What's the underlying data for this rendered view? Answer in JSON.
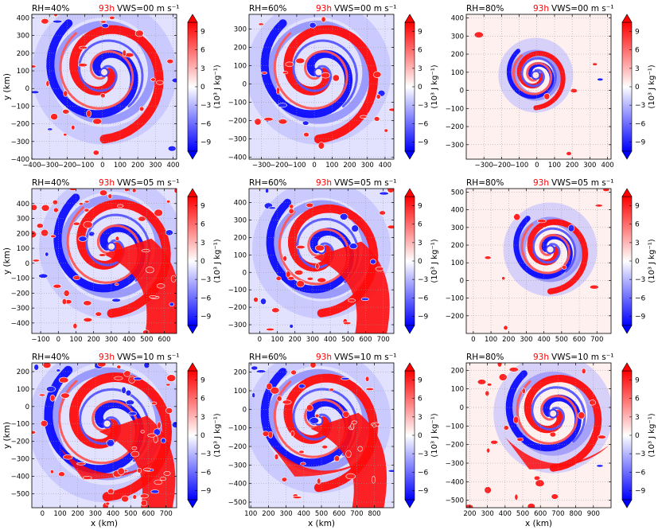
{
  "colorbar": {
    "label": "(10³ J kg⁻¹)",
    "ticks": [
      9,
      6,
      3,
      0,
      -3,
      -6,
      -9
    ],
    "vmin": -10.5,
    "vmax": 10.5,
    "colormap": "bwr",
    "colors": {
      "negative": "#0000ff",
      "neutral": "#ffffff",
      "positive": "#ff0000"
    }
  },
  "chart_data": [
    {
      "type": "heatmap",
      "rh": "RH=40%",
      "time": "93h",
      "vws": "VWS=00 m s⁻¹",
      "xlim": [
        -400,
        420
      ],
      "ylim": [
        -400,
        420
      ],
      "xticks": [
        "−400",
        "−300",
        "−200",
        "−100",
        "0",
        "100",
        "200",
        "300",
        "400"
      ],
      "yticks": [
        "−400",
        "−300",
        "−200",
        "−100",
        "0",
        "100",
        "200",
        "300",
        "400"
      ],
      "ylabel": "y (km)",
      "xlabel": "",
      "grid": true
    },
    {
      "type": "heatmap",
      "rh": "RH=60%",
      "time": "93h",
      "vws": "VWS=00 m s⁻¹",
      "xlim": [
        -370,
        450
      ],
      "ylim": [
        -410,
        380
      ],
      "xticks": [
        "−300",
        "−200",
        "−100",
        "0",
        "100",
        "200",
        "300",
        "400"
      ],
      "yticks": [
        "−400",
        "−300",
        "−200",
        "−100",
        "0",
        "100",
        "200",
        "300"
      ],
      "ylabel": "",
      "xlabel": "",
      "grid": true
    },
    {
      "type": "heatmap",
      "rh": "RH=80%",
      "time": "93h",
      "vws": "VWS=00 m s⁻¹",
      "xlim": [
        -400,
        420
      ],
      "ylim": [
        -380,
        420
      ],
      "xticks": [
        "−300",
        "−200",
        "−100",
        "0",
        "100",
        "200",
        "300",
        "400"
      ],
      "yticks": [
        "−300",
        "−200",
        "−100",
        "0",
        "100",
        "200",
        "300",
        "400"
      ],
      "ylabel": "",
      "xlabel": "",
      "grid": true
    },
    {
      "type": "heatmap",
      "rh": "RH=40%",
      "time": "93h",
      "vws": "VWS=05 m s⁻¹",
      "xlim": [
        -150,
        670
      ],
      "ylim": [
        -470,
        500
      ],
      "xticks": [
        "−100",
        "0",
        "100",
        "200",
        "300",
        "400",
        "500",
        "600"
      ],
      "yticks": [
        "−400",
        "−300",
        "−200",
        "−100",
        "0",
        "100",
        "200",
        "300",
        "400"
      ],
      "ylabel": "y (km)",
      "xlabel": "",
      "grid": true
    },
    {
      "type": "heatmap",
      "rh": "RH=60%",
      "time": "93h",
      "vws": "VWS=05 m s⁻¹",
      "xlim": [
        -60,
        760
      ],
      "ylim": [
        -350,
        480
      ],
      "xticks": [
        "0",
        "100",
        "200",
        "300",
        "400",
        "500",
        "600",
        "700"
      ],
      "yticks": [
        "−300",
        "−200",
        "−100",
        "0",
        "100",
        "200",
        "300",
        "400"
      ],
      "ylabel": "",
      "xlabel": "",
      "grid": true
    },
    {
      "type": "heatmap",
      "rh": "RH=80%",
      "time": "93h",
      "vws": "VWS=05 m s⁻¹",
      "xlim": [
        -40,
        780
      ],
      "ylim": [
        -300,
        520
      ],
      "xticks": [
        "0",
        "100",
        "200",
        "300",
        "400",
        "500",
        "600",
        "700"
      ],
      "yticks": [
        "−200",
        "−100",
        "0",
        "100",
        "200",
        "300",
        "400",
        "500"
      ],
      "ylabel": "",
      "xlabel": "",
      "grid": true
    },
    {
      "type": "heatmap",
      "rh": "RH=40%",
      "time": "93h",
      "vws": "VWS=10 m s⁻¹",
      "xlim": [
        -60,
        760
      ],
      "ylim": [
        -580,
        250
      ],
      "xticks": [
        "0",
        "100",
        "200",
        "300",
        "400",
        "500",
        "600",
        "700"
      ],
      "yticks": [
        "−500",
        "−400",
        "−300",
        "−200",
        "−100",
        "0",
        "100",
        "200"
      ],
      "ylabel": "y (km)",
      "xlabel": "x (km)",
      "grid": true
    },
    {
      "type": "heatmap",
      "rh": "RH=60%",
      "time": "93h",
      "vws": "VWS=10 m s⁻¹",
      "xlim": [
        90,
        910
      ],
      "ylim": [
        -530,
        250
      ],
      "xticks": [
        "100",
        "200",
        "300",
        "400",
        "500",
        "600",
        "700",
        "800"
      ],
      "yticks": [
        "−500",
        "−400",
        "−300",
        "−200",
        "−100",
        "0",
        "100",
        "200"
      ],
      "ylabel": "",
      "xlabel": "x (km)",
      "grid": true
    },
    {
      "type": "heatmap",
      "rh": "RH=80%",
      "time": "93h",
      "vws": "VWS=10 m s⁻¹",
      "xlim": [
        180,
        1000
      ],
      "ylim": [
        -540,
        240
      ],
      "xticks": [
        "200",
        "300",
        "400",
        "500",
        "600",
        "700",
        "800",
        "900"
      ],
      "yticks": [
        "−500",
        "−400",
        "−300",
        "−200",
        "−100",
        "0",
        "100",
        "200"
      ],
      "ylabel": "",
      "xlabel": "x (km)",
      "grid": true
    }
  ]
}
